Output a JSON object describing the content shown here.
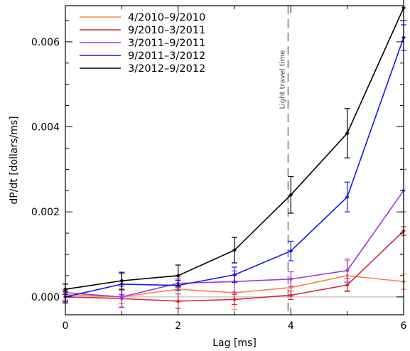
{
  "chart_data": {
    "type": "line",
    "xlabel": "Lag [ms]",
    "ylabel": "dP/dt [dollars/ms]",
    "xlim": [
      0,
      6
    ],
    "ylim": [
      -0.00042,
      0.00685
    ],
    "x_ticks": [
      0,
      2,
      4,
      6
    ],
    "x_tick_labels": [
      "0",
      "2",
      "4",
      "6"
    ],
    "y_ticks": [
      0.0,
      0.002,
      0.004,
      0.006
    ],
    "y_tick_labels": [
      "0.000",
      "0.002",
      "0.004",
      "0.006"
    ],
    "zero_line": 0,
    "grid": false,
    "legend_position": "top-left",
    "annotation": {
      "text": "Light travel time",
      "x": 3.95
    },
    "series": [
      {
        "name": "4/2010–9/2010",
        "color": "#f4844c",
        "x": [
          0,
          1,
          2,
          3,
          4,
          5,
          6
        ],
        "y": [
          5e-05,
          0.0,
          0.00018,
          0.0001,
          0.00022,
          0.0005,
          0.00036
        ],
        "err": [
          0.00012,
          0.00016,
          0.0003,
          0.0004,
          0.0002,
          0.00035,
          0.00018
        ]
      },
      {
        "name": "9/2010–3/2011",
        "color": "#d42a3c",
        "x": [
          0,
          1,
          2,
          3,
          4,
          5,
          6
        ],
        "y": [
          0.0,
          -4e-05,
          -0.0001,
          -6e-05,
          4e-05,
          0.00028,
          0.00155
        ],
        "err": [
          0.00015,
          0.0002,
          0.00017,
          0.00012,
          0.0001,
          0.00015,
          0.0001
        ]
      },
      {
        "name": "3/2011–9/2011",
        "color": "#a035e0",
        "x": [
          0,
          1,
          2,
          3,
          4,
          5,
          6
        ],
        "y": [
          0.0001,
          0.0,
          0.00032,
          0.00036,
          0.00042,
          0.00062,
          0.0025
        ],
        "err": [
          0.0002,
          0.00025,
          0.0001,
          0.00025,
          0.00017,
          0.00027,
          0.0005
        ]
      },
      {
        "name": "9/2011–3/2012",
        "color": "#1818e8",
        "x": [
          0,
          1,
          2,
          3,
          4,
          5,
          6
        ],
        "y": [
          0.0,
          0.0003,
          0.00027,
          0.00052,
          0.00108,
          0.00235,
          0.0061
        ],
        "err": [
          0.00012,
          0.00025,
          0.00012,
          0.00018,
          0.00023,
          0.00035,
          0.0003
        ]
      },
      {
        "name": "3/2012–9/2012",
        "color": "#000000",
        "x": [
          0,
          1,
          2,
          3,
          4,
          5,
          6
        ],
        "y": [
          0.00018,
          0.00038,
          0.0005,
          0.0011,
          0.0024,
          0.00385,
          0.0068
        ],
        "err": [
          0.00012,
          0.0002,
          0.00025,
          0.0003,
          0.00043,
          0.00058,
          0.0003
        ]
      }
    ]
  }
}
